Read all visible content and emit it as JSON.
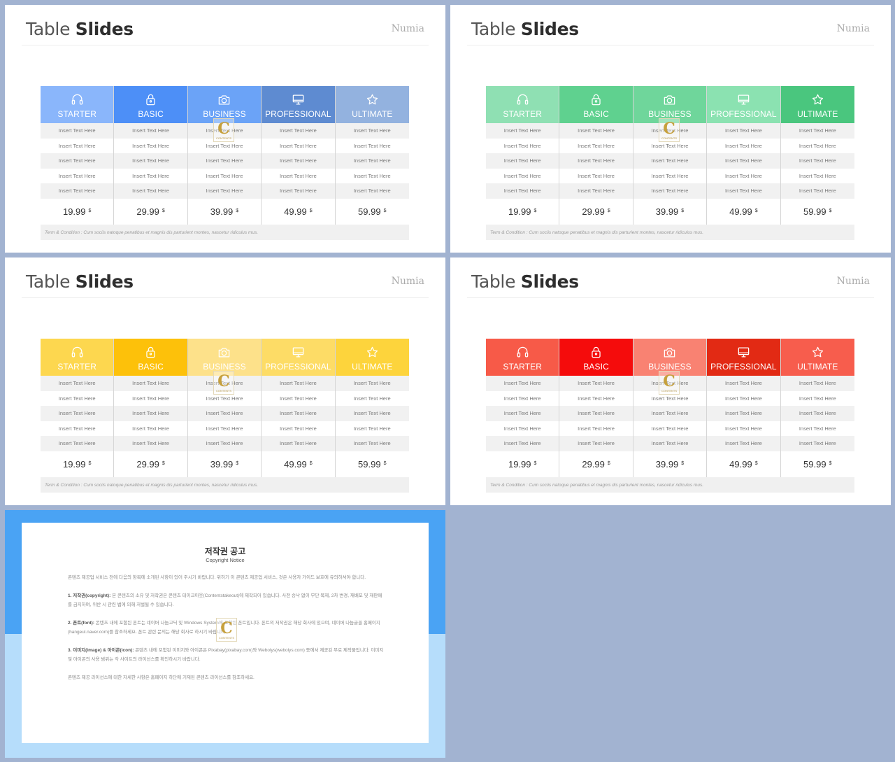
{
  "slides": [
    {
      "title_regular": "Table ",
      "title_bold": "Slides",
      "brand": "Numia",
      "plans": [
        {
          "name": "STARTER",
          "icon": "headphones-icon",
          "color": "#8ab6fb",
          "price": "19.99",
          "currency": "$",
          "rows": [
            "Insert Text Here",
            "Insert Text Here",
            "Insert Text Here",
            "Insert Text Here",
            "Insert Text Here"
          ]
        },
        {
          "name": "BASIC",
          "icon": "lock-icon",
          "color": "#4d8ff7",
          "price": "29.99",
          "currency": "$",
          "rows": [
            "Insert Text Here",
            "Insert Text Here",
            "Insert Text Here",
            "Insert Text Here",
            "Insert Text Here"
          ]
        },
        {
          "name": "BUSINESS",
          "icon": "camera-icon",
          "color": "#6ba3f7",
          "price": "39.99",
          "currency": "$",
          "rows": [
            "Insert Text Here",
            "Insert Text Here",
            "Insert Text Here",
            "Insert Text Here",
            "Insert Text Here"
          ]
        },
        {
          "name": "PROFESSIONAL",
          "icon": "monitor-icon",
          "color": "#5e8bd1",
          "price": "49.99",
          "currency": "$",
          "rows": [
            "Insert Text Here",
            "Insert Text Here",
            "Insert Text Here",
            "Insert Text Here",
            "Insert Text Here"
          ]
        },
        {
          "name": "ULTIMATE",
          "icon": "star-icon",
          "color": "#93b2df",
          "price": "59.99",
          "currency": "$",
          "rows": [
            "Insert Text Here",
            "Insert Text Here",
            "Insert Text Here",
            "Insert Text Here",
            "Insert Text Here"
          ]
        }
      ],
      "terms": "Term & Condition : Cum sociis natoque penatibus et magnis dis parturient montes, nascetur ridiculus mus."
    },
    {
      "title_regular": "Table ",
      "title_bold": "Slides",
      "brand": "Numia",
      "plans": [
        {
          "name": "STARTER",
          "icon": "headphones-icon",
          "color": "#8fe0b3",
          "price": "19.99",
          "currency": "$",
          "rows": [
            "Insert Text Here",
            "Insert Text Here",
            "Insert Text Here",
            "Insert Text Here",
            "Insert Text Here"
          ]
        },
        {
          "name": "BASIC",
          "icon": "lock-icon",
          "color": "#5fd18f",
          "price": "29.99",
          "currency": "$",
          "rows": [
            "Insert Text Here",
            "Insert Text Here",
            "Insert Text Here",
            "Insert Text Here",
            "Insert Text Here"
          ]
        },
        {
          "name": "BUSINESS",
          "icon": "camera-icon",
          "color": "#6fd69b",
          "price": "39.99",
          "currency": "$",
          "rows": [
            "Insert Text Here",
            "Insert Text Here",
            "Insert Text Here",
            "Insert Text Here",
            "Insert Text Here"
          ]
        },
        {
          "name": "PROFESSIONAL",
          "icon": "monitor-icon",
          "color": "#8be2b1",
          "price": "49.99",
          "currency": "$",
          "rows": [
            "Insert Text Here",
            "Insert Text Here",
            "Insert Text Here",
            "Insert Text Here",
            "Insert Text Here"
          ]
        },
        {
          "name": "ULTIMATE",
          "icon": "star-icon",
          "color": "#4ac67e",
          "price": "59.99",
          "currency": "$",
          "rows": [
            "Insert Text Here",
            "Insert Text Here",
            "Insert Text Here",
            "Insert Text Here",
            "Insert Text Here"
          ]
        }
      ],
      "terms": "Term & Condition : Cum sociis natoque penatibus et magnis dis parturient montes, nascetur ridiculus mus."
    },
    {
      "title_regular": "Table ",
      "title_bold": "Slides",
      "brand": "Numia",
      "plans": [
        {
          "name": "STARTER",
          "icon": "headphones-icon",
          "color": "#fdd74f",
          "price": "19.99",
          "currency": "$",
          "rows": [
            "Insert Text Here",
            "Insert Text Here",
            "Insert Text Here",
            "Insert Text Here",
            "Insert Text Here"
          ]
        },
        {
          "name": "BASIC",
          "icon": "lock-icon",
          "color": "#fdc10a",
          "price": "29.99",
          "currency": "$",
          "rows": [
            "Insert Text Here",
            "Insert Text Here",
            "Insert Text Here",
            "Insert Text Here",
            "Insert Text Here"
          ]
        },
        {
          "name": "BUSINESS",
          "icon": "camera-icon",
          "color": "#fde18a",
          "price": "39.99",
          "currency": "$",
          "rows": [
            "Insert Text Here",
            "Insert Text Here",
            "Insert Text Here",
            "Insert Text Here",
            "Insert Text Here"
          ]
        },
        {
          "name": "PROFESSIONAL",
          "icon": "monitor-icon",
          "color": "#fddc66",
          "price": "49.99",
          "currency": "$",
          "rows": [
            "Insert Text Here",
            "Insert Text Here",
            "Insert Text Here",
            "Insert Text Here",
            "Insert Text Here"
          ]
        },
        {
          "name": "ULTIMATE",
          "icon": "star-icon",
          "color": "#fdd43c",
          "price": "59.99",
          "currency": "$",
          "rows": [
            "Insert Text Here",
            "Insert Text Here",
            "Insert Text Here",
            "Insert Text Here",
            "Insert Text Here"
          ]
        }
      ],
      "terms": "Term & Condition : Cum sociis natoque penatibus et magnis dis parturient montes, nascetur ridiculus mus."
    },
    {
      "title_regular": "Table ",
      "title_bold": "Slides",
      "brand": "Numia",
      "plans": [
        {
          "name": "STARTER",
          "icon": "headphones-icon",
          "color": "#f75a48",
          "price": "19.99",
          "currency": "$",
          "rows": [
            "Insert Text Here",
            "Insert Text Here",
            "Insert Text Here",
            "Insert Text Here",
            "Insert Text Here"
          ]
        },
        {
          "name": "BASIC",
          "icon": "lock-icon",
          "color": "#f50c0c",
          "price": "29.99",
          "currency": "$",
          "rows": [
            "Insert Text Here",
            "Insert Text Here",
            "Insert Text Here",
            "Insert Text Here",
            "Insert Text Here"
          ]
        },
        {
          "name": "BUSINESS",
          "icon": "camera-icon",
          "color": "#f98272",
          "price": "39.99",
          "currency": "$",
          "rows": [
            "Insert Text Here",
            "Insert Text Here",
            "Insert Text Here",
            "Insert Text Here",
            "Insert Text Here"
          ]
        },
        {
          "name": "PROFESSIONAL",
          "icon": "monitor-icon",
          "color": "#e22a14",
          "price": "49.99",
          "currency": "$",
          "rows": [
            "Insert Text Here",
            "Insert Text Here",
            "Insert Text Here",
            "Insert Text Here",
            "Insert Text Here"
          ]
        },
        {
          "name": "ULTIMATE",
          "icon": "star-icon",
          "color": "#f75d4d",
          "price": "59.99",
          "currency": "$",
          "rows": [
            "Insert Text Here",
            "Insert Text Here",
            "Insert Text Here",
            "Insert Text Here",
            "Insert Text Here"
          ]
        }
      ],
      "terms": "Term & Condition : Cum sociis natoque penatibus et magnis dis parturient montes, nascetur ridiculus mus."
    }
  ],
  "watermark": {
    "letter": "C",
    "text": "CONTENTS"
  },
  "notice": {
    "title": "저작권 공고",
    "subtitle": "Copyright Notice",
    "intro": "콘텐츠 제공업 서비스 전에 다음의 항목에 소개된 사항이 있어 주시기 바랍니다. 위하기 이 콘텐츠 제공업 서비스, 것은 사용자 가이드 보호에 유의하셔야 합니다.",
    "sections": [
      {
        "heading": "1. 저작권(copyright):",
        "text": "본 콘텐츠의 소유 및 저작권은 콘텐츠 테이크아웃(Contentstakeout)에 제작되어 있습니다. 사전 승낙 없이 무단 복제, 2차 변경, 재배포 및 재판매를 금지하며, 위반 시 관련 법에 의해 처벌될 수 있습니다."
      },
      {
        "heading": "2. 폰트(font):",
        "text": "콘텐츠 내에 포함된 폰트는 네이버 나눔고딕 및 Windows System에 포함된 폰트입니다. 폰트의 저작권은 해당 회사에 있으며, 네이버 나눔글꼴 홈페이지(hangeul.naver.com)를 참조하세요. 폰트 관련 문의는 해당 회사로 하시기 바랍니다."
      },
      {
        "heading": "3. 이미지(image) & 아이콘(icon):",
        "text": "콘텐츠 내에 포함된 이미지와 아이콘은 Pixabay(pixabay.com)와 Webolys(webolys.com) 등에서 제공된 무료 제작물입니다. 이미지 및 아이콘의 사용 범위는 각 사이트의 라이선스를 확인하시기 바랍니다."
      }
    ],
    "footer": "콘텐츠 제공 라이선스에 대한 자세한 사항은 홈페이지 하단에 기재된 콘텐츠 라이선스를 참조하세요."
  }
}
